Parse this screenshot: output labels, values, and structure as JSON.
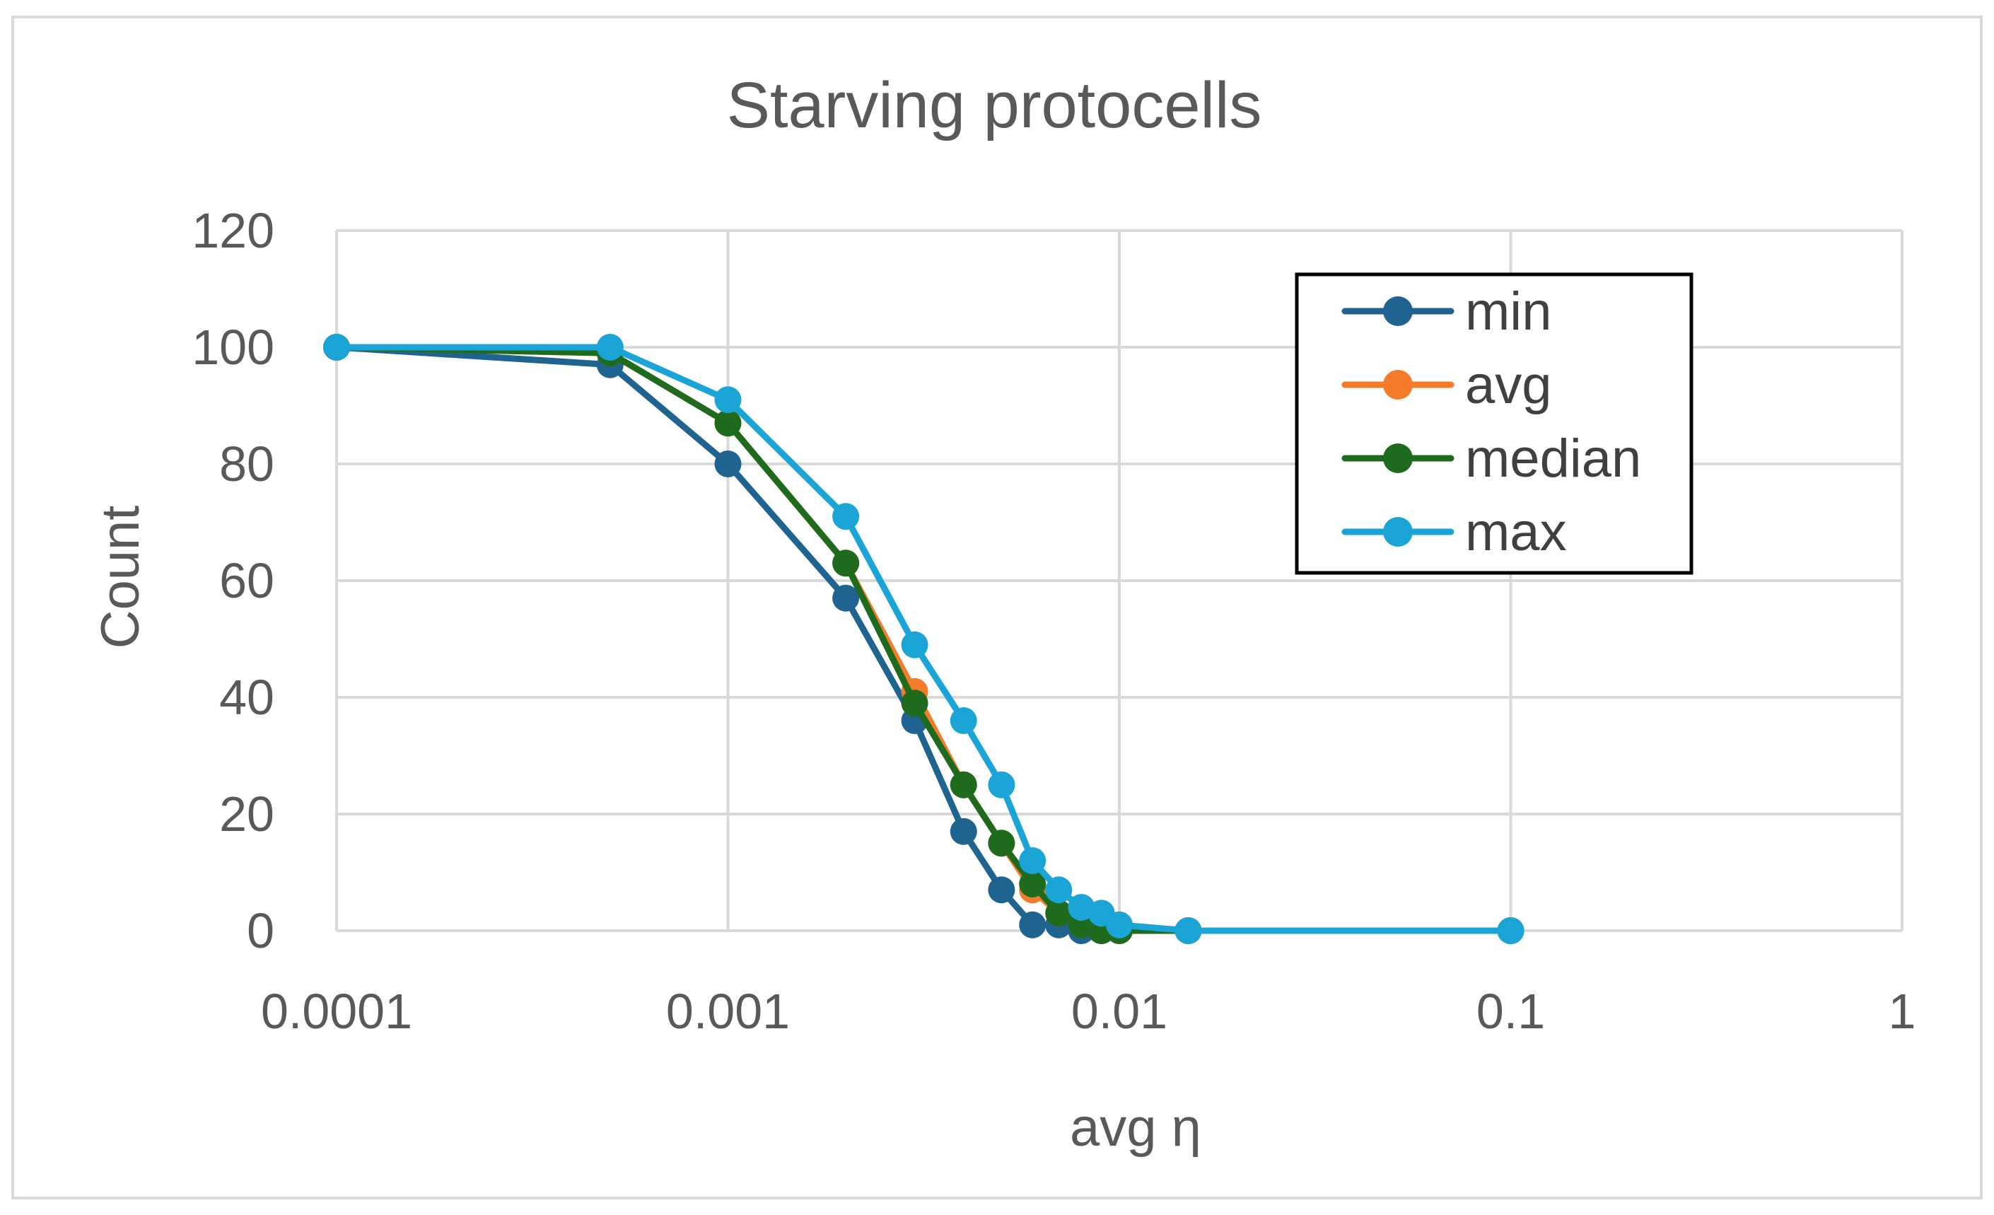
{
  "chart_data": {
    "type": "line",
    "title": "Starving protocells",
    "xlabel": "avg η",
    "ylabel": "Count",
    "xscale": "log",
    "xlim": [
      0.0001,
      1
    ],
    "ylim": [
      0,
      120
    ],
    "x_ticks": [
      "0.0001",
      "0.001",
      "0.01",
      "0.1",
      "1"
    ],
    "y_ticks": [
      "0",
      "20",
      "40",
      "60",
      "80",
      "100",
      "120"
    ],
    "grid": true,
    "legend_position": "top-right",
    "x": [
      0.0001,
      0.0005,
      0.001,
      0.002,
      0.003,
      0.004,
      0.005,
      0.006,
      0.007,
      0.008,
      0.009,
      0.01,
      0.015,
      0.1
    ],
    "series": [
      {
        "name": "min",
        "color": "#1f6391",
        "values": [
          100,
          97,
          80,
          57,
          36,
          17,
          7,
          1,
          1,
          0,
          0,
          0,
          0,
          0
        ]
      },
      {
        "name": "avg",
        "color": "#f47b2a",
        "values": [
          100,
          99,
          87,
          63,
          41,
          25,
          15,
          7,
          3,
          1,
          0,
          0,
          0,
          0
        ]
      },
      {
        "name": "median",
        "color": "#1e6b1e",
        "values": [
          100,
          99,
          87,
          63,
          39,
          25,
          15,
          8,
          3,
          1,
          0,
          0,
          0,
          0
        ]
      },
      {
        "name": "max",
        "color": "#1aa5d6",
        "values": [
          100,
          100,
          91,
          71,
          49,
          36,
          25,
          12,
          7,
          4,
          3,
          1,
          0,
          0
        ]
      }
    ]
  }
}
